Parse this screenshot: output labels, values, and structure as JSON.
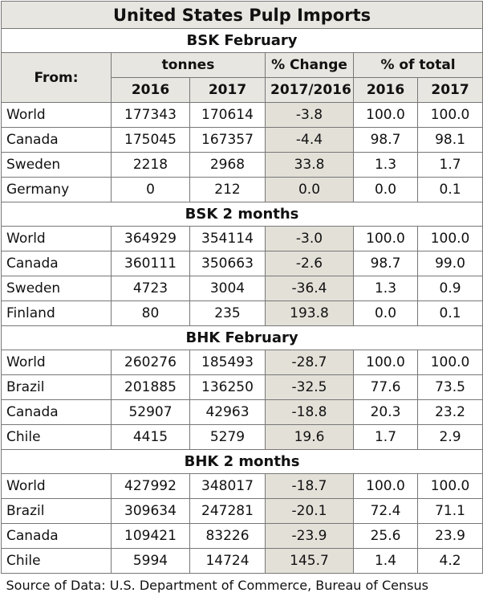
{
  "title": "United States Pulp Imports",
  "header": {
    "from": "From:",
    "tonnes": "tonnes",
    "change": "% Change",
    "total": "% of total",
    "sub": [
      "2016",
      "2017",
      "2017/2016",
      "2016",
      "2017"
    ]
  },
  "sections": [
    {
      "title": "BSK February",
      "rows": [
        [
          "World",
          "177343",
          "170614",
          "-3.8",
          "100.0",
          "100.0"
        ],
        [
          "Canada",
          "175045",
          "167357",
          "-4.4",
          "98.7",
          "98.1"
        ],
        [
          "Sweden",
          "2218",
          "2968",
          "33.8",
          "1.3",
          "1.7"
        ],
        [
          "Germany",
          "0",
          "212",
          "0.0",
          "0.0",
          "0.1"
        ]
      ]
    },
    {
      "title": "BSK 2 months",
      "rows": [
        [
          "World",
          "364929",
          "354114",
          "-3.0",
          "100.0",
          "100.0"
        ],
        [
          "Canada",
          "360111",
          "350663",
          "-2.6",
          "98.7",
          "99.0"
        ],
        [
          "Sweden",
          "4723",
          "3004",
          "-36.4",
          "1.3",
          "0.9"
        ],
        [
          "Finland",
          "80",
          "235",
          "193.8",
          "0.0",
          "0.1"
        ]
      ]
    },
    {
      "title": "BHK February",
      "rows": [
        [
          "World",
          "260276",
          "185493",
          "-28.7",
          "100.0",
          "100.0"
        ],
        [
          "Brazil",
          "201885",
          "136250",
          "-32.5",
          "77.6",
          "73.5"
        ],
        [
          "Canada",
          "52907",
          "42963",
          "-18.8",
          "20.3",
          "23.2"
        ],
        [
          "Chile",
          "4415",
          "5279",
          "19.6",
          "1.7",
          "2.9"
        ]
      ]
    },
    {
      "title": "BHK 2 months",
      "rows": [
        [
          "World",
          "427992",
          "348017",
          "-18.7",
          "100.0",
          "100.0"
        ],
        [
          "Brazil",
          "309634",
          "247281",
          "-20.1",
          "72.4",
          "71.1"
        ],
        [
          "Canada",
          "109421",
          "83226",
          "-23.9",
          "25.6",
          "23.9"
        ],
        [
          "Chile",
          "5994",
          "14724",
          "145.7",
          "1.4",
          "4.2"
        ]
      ]
    }
  ],
  "source": "Source of Data: U.S. Department of Commerce, Bureau of Census"
}
